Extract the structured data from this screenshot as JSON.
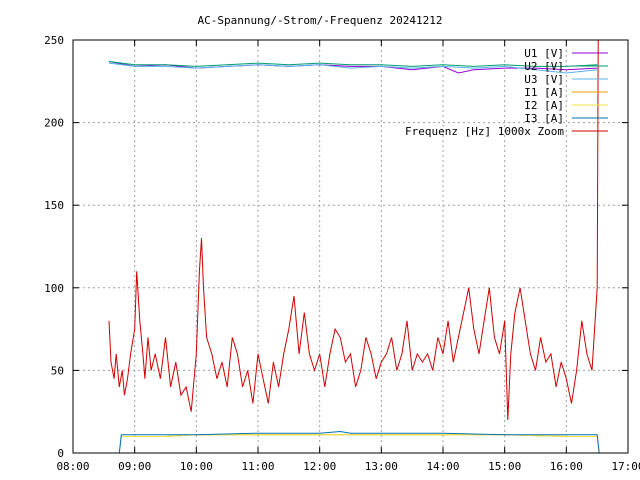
{
  "chart_data": {
    "type": "line",
    "title": "AC-Spannung/-Strom/-Frequenz 20241212",
    "xlabel": "",
    "ylabel": "",
    "x_ticks": [
      "08:00",
      "09:00",
      "10:00",
      "11:00",
      "12:00",
      "13:00",
      "14:00",
      "15:00",
      "16:00",
      "17:00"
    ],
    "y_ticks": [
      0,
      50,
      100,
      150,
      200,
      250
    ],
    "xlim": [
      "08:00",
      "17:00"
    ],
    "ylim": [
      0,
      250
    ],
    "grid": true,
    "legend_position": "top-right",
    "series": [
      {
        "name": "U1 [V]",
        "color": "#9400d3",
        "points": [
          [
            "08:35",
            237
          ],
          [
            "09:00",
            234
          ],
          [
            "09:30",
            235
          ],
          [
            "10:00",
            233
          ],
          [
            "10:30",
            234
          ],
          [
            "11:00",
            235
          ],
          [
            "11:30",
            234
          ],
          [
            "12:00",
            235
          ],
          [
            "12:30",
            234
          ],
          [
            "13:00",
            234
          ],
          [
            "13:30",
            232
          ],
          [
            "14:00",
            234
          ],
          [
            "14:15",
            230
          ],
          [
            "14:30",
            232
          ],
          [
            "15:00",
            233
          ],
          [
            "15:30",
            233
          ],
          [
            "16:00",
            232
          ],
          [
            "16:30",
            233
          ]
        ]
      },
      {
        "name": "U2 [V]",
        "color": "#009e73",
        "points": [
          [
            "08:35",
            237
          ],
          [
            "09:00",
            235
          ],
          [
            "09:30",
            235
          ],
          [
            "10:00",
            234
          ],
          [
            "10:30",
            235
          ],
          [
            "11:00",
            236
          ],
          [
            "11:30",
            235
          ],
          [
            "12:00",
            236
          ],
          [
            "12:30",
            235
          ],
          [
            "13:00",
            235
          ],
          [
            "13:30",
            234
          ],
          [
            "14:00",
            235
          ],
          [
            "14:30",
            234
          ],
          [
            "15:00",
            235
          ],
          [
            "15:30",
            234
          ],
          [
            "16:00",
            234
          ],
          [
            "16:30",
            235
          ]
        ]
      },
      {
        "name": "U3 [V]",
        "color": "#56b4e9",
        "points": [
          [
            "08:35",
            236
          ],
          [
            "09:00",
            234
          ],
          [
            "09:30",
            234
          ],
          [
            "10:00",
            233
          ],
          [
            "10:30",
            234
          ],
          [
            "11:00",
            235
          ],
          [
            "11:30",
            234
          ],
          [
            "12:00",
            235
          ],
          [
            "12:30",
            233
          ],
          [
            "13:00",
            234
          ],
          [
            "13:30",
            233
          ],
          [
            "14:00",
            234
          ],
          [
            "14:30",
            233
          ],
          [
            "15:00",
            234
          ],
          [
            "15:30",
            232
          ],
          [
            "16:00",
            230
          ],
          [
            "16:30",
            232
          ]
        ]
      },
      {
        "name": "I1 [A]",
        "color": "#e69f00",
        "points": [
          [
            "08:35",
            0
          ],
          [
            "08:45",
            0
          ],
          [
            "08:47",
            10
          ],
          [
            "09:30",
            10
          ],
          [
            "10:00",
            11
          ],
          [
            "11:00",
            11
          ],
          [
            "12:00",
            11
          ],
          [
            "12:30",
            11
          ],
          [
            "13:00",
            11
          ],
          [
            "14:00",
            11
          ],
          [
            "15:00",
            11
          ],
          [
            "16:00",
            10
          ],
          [
            "16:30",
            10
          ],
          [
            "16:32",
            0
          ]
        ]
      },
      {
        "name": "I2 [A]",
        "color": "#f0e442",
        "points": [
          [
            "08:35",
            0
          ],
          [
            "08:45",
            0
          ],
          [
            "08:47",
            10
          ],
          [
            "09:30",
            10
          ],
          [
            "10:00",
            11
          ],
          [
            "11:00",
            11
          ],
          [
            "12:00",
            11
          ],
          [
            "13:00",
            11
          ],
          [
            "14:00",
            11
          ],
          [
            "15:00",
            11
          ],
          [
            "16:00",
            10
          ],
          [
            "16:30",
            10
          ],
          [
            "16:32",
            0
          ]
        ]
      },
      {
        "name": "I3 [A]",
        "color": "#0072b2",
        "points": [
          [
            "08:35",
            0
          ],
          [
            "08:45",
            0
          ],
          [
            "08:47",
            11
          ],
          [
            "09:30",
            11
          ],
          [
            "10:00",
            11
          ],
          [
            "11:00",
            12
          ],
          [
            "12:00",
            12
          ],
          [
            "12:20",
            13
          ],
          [
            "12:30",
            12
          ],
          [
            "13:00",
            12
          ],
          [
            "14:00",
            12
          ],
          [
            "15:00",
            11
          ],
          [
            "16:00",
            11
          ],
          [
            "16:30",
            11
          ],
          [
            "16:32",
            0
          ]
        ]
      },
      {
        "name": "Frequenz [Hz] 1000x Zoom",
        "color": "#d00000",
        "points": [
          [
            "08:35",
            80
          ],
          [
            "08:37",
            55
          ],
          [
            "08:40",
            45
          ],
          [
            "08:42",
            60
          ],
          [
            "08:45",
            40
          ],
          [
            "08:48",
            50
          ],
          [
            "08:50",
            35
          ],
          [
            "08:53",
            45
          ],
          [
            "08:56",
            60
          ],
          [
            "09:00",
            75
          ],
          [
            "09:02",
            110
          ],
          [
            "09:05",
            80
          ],
          [
            "09:08",
            60
          ],
          [
            "09:10",
            45
          ],
          [
            "09:13",
            70
          ],
          [
            "09:16",
            50
          ],
          [
            "09:20",
            60
          ],
          [
            "09:25",
            45
          ],
          [
            "09:30",
            70
          ],
          [
            "09:35",
            40
          ],
          [
            "09:40",
            55
          ],
          [
            "09:45",
            35
          ],
          [
            "09:50",
            40
          ],
          [
            "09:55",
            25
          ],
          [
            "10:00",
            60
          ],
          [
            "10:03",
            110
          ],
          [
            "10:05",
            130
          ],
          [
            "10:07",
            100
          ],
          [
            "10:10",
            70
          ],
          [
            "10:15",
            60
          ],
          [
            "10:20",
            45
          ],
          [
            "10:25",
            55
          ],
          [
            "10:30",
            40
          ],
          [
            "10:35",
            70
          ],
          [
            "10:40",
            60
          ],
          [
            "10:45",
            40
          ],
          [
            "10:50",
            50
          ],
          [
            "10:55",
            30
          ],
          [
            "11:00",
            60
          ],
          [
            "11:05",
            45
          ],
          [
            "11:10",
            30
          ],
          [
            "11:15",
            55
          ],
          [
            "11:20",
            40
          ],
          [
            "11:25",
            60
          ],
          [
            "11:30",
            75
          ],
          [
            "11:35",
            95
          ],
          [
            "11:40",
            60
          ],
          [
            "11:45",
            85
          ],
          [
            "11:50",
            60
          ],
          [
            "11:55",
            50
          ],
          [
            "12:00",
            60
          ],
          [
            "12:05",
            40
          ],
          [
            "12:10",
            60
          ],
          [
            "12:15",
            75
          ],
          [
            "12:20",
            70
          ],
          [
            "12:25",
            55
          ],
          [
            "12:30",
            60
          ],
          [
            "12:35",
            40
          ],
          [
            "12:40",
            50
          ],
          [
            "12:45",
            70
          ],
          [
            "12:50",
            60
          ],
          [
            "12:55",
            45
          ],
          [
            "13:00",
            55
          ],
          [
            "13:05",
            60
          ],
          [
            "13:10",
            70
          ],
          [
            "13:15",
            50
          ],
          [
            "13:20",
            60
          ],
          [
            "13:25",
            80
          ],
          [
            "13:30",
            50
          ],
          [
            "13:35",
            60
          ],
          [
            "13:40",
            55
          ],
          [
            "13:45",
            60
          ],
          [
            "13:50",
            50
          ],
          [
            "13:55",
            70
          ],
          [
            "14:00",
            60
          ],
          [
            "14:05",
            80
          ],
          [
            "14:10",
            55
          ],
          [
            "14:15",
            70
          ],
          [
            "14:20",
            85
          ],
          [
            "14:25",
            100
          ],
          [
            "14:30",
            75
          ],
          [
            "14:35",
            60
          ],
          [
            "14:40",
            80
          ],
          [
            "14:45",
            100
          ],
          [
            "14:50",
            70
          ],
          [
            "14:55",
            60
          ],
          [
            "15:00",
            80
          ],
          [
            "15:03",
            20
          ],
          [
            "15:06",
            60
          ],
          [
            "15:10",
            85
          ],
          [
            "15:15",
            100
          ],
          [
            "15:20",
            80
          ],
          [
            "15:25",
            60
          ],
          [
            "15:30",
            50
          ],
          [
            "15:35",
            70
          ],
          [
            "15:40",
            55
          ],
          [
            "15:45",
            60
          ],
          [
            "15:50",
            40
          ],
          [
            "15:55",
            55
          ],
          [
            "16:00",
            45
          ],
          [
            "16:05",
            30
          ],
          [
            "16:10",
            50
          ],
          [
            "16:15",
            80
          ],
          [
            "16:20",
            60
          ],
          [
            "16:25",
            50
          ],
          [
            "16:28",
            80
          ],
          [
            "16:30",
            100
          ],
          [
            "16:31",
            250
          ]
        ]
      }
    ]
  }
}
